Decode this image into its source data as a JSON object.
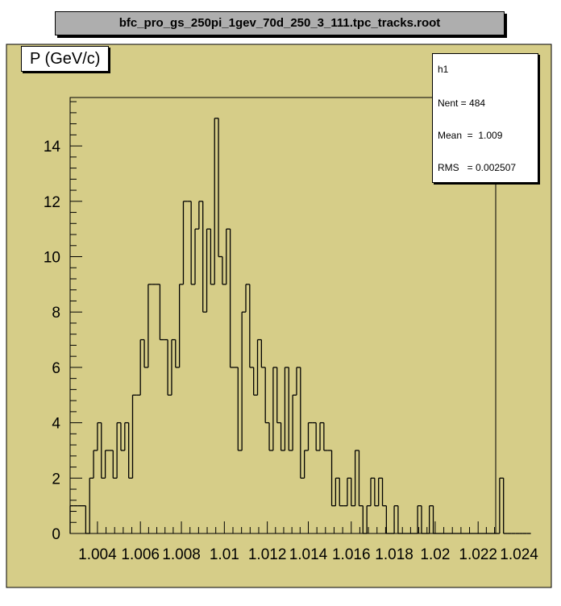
{
  "file_title": "bfc_pro_gs_250pi_1gev_70d_250_3_111.tpc_tracks.root",
  "colors": {
    "pad_fill": "#d6cd88",
    "frame_fill": "#d6cd88",
    "title_fill": "#aeaeae",
    "line": "#000000"
  },
  "stats": {
    "name": "h1",
    "entries": "Nent = 484",
    "mean": "Mean  =  1.009",
    "rms": "RMS   = 0.002507"
  },
  "chart_data": {
    "type": "histogram",
    "title": "P (GeV/c)",
    "xlabel": "",
    "ylabel": "",
    "xlim": [
      1.0024,
      1.0242
    ],
    "ylim": [
      0,
      15.75
    ],
    "grid": false,
    "legend": "top-right",
    "bin_width": 0.0002,
    "x_tick_labels": [
      "1.004",
      "1.006",
      "1.008",
      "1.01",
      "1.012",
      "1.014",
      "1.016",
      "1.018",
      "1.02",
      "1.022",
      "1.024"
    ],
    "x_tick_values": [
      1.0038,
      1.006,
      1.0081,
      1.0103,
      1.0125,
      1.0146,
      1.0168,
      1.019,
      1.0211,
      1.0233,
      1.0254
    ],
    "y_tick_labels": [
      "0",
      "2",
      "4",
      "6",
      "8",
      "10",
      "12",
      "14"
    ],
    "y_ticks": [
      0,
      2,
      4,
      6,
      8,
      10,
      12,
      14
    ],
    "counts": [
      1,
      1,
      1,
      1,
      0,
      2,
      3,
      4,
      2,
      3,
      3,
      2,
      4,
      3,
      4,
      2,
      5,
      5,
      7,
      6,
      9,
      9,
      9,
      7,
      7,
      5,
      7,
      6,
      9,
      12,
      12,
      9,
      11,
      12,
      8,
      11,
      9,
      15,
      10,
      9,
      11,
      6,
      6,
      3,
      8,
      9,
      6,
      5,
      7,
      6,
      4,
      3,
      6,
      4,
      3,
      6,
      3,
      5,
      6,
      2,
      3,
      4,
      4,
      3,
      4,
      3,
      3,
      1,
      2,
      1,
      1,
      2,
      1,
      3,
      1,
      0,
      1,
      2,
      1,
      2,
      1,
      0,
      0,
      1,
      0,
      0,
      0,
      0,
      0,
      1,
      0,
      0,
      1,
      0,
      0,
      0,
      0,
      0,
      0,
      0,
      0,
      0,
      0,
      0,
      0,
      0,
      0,
      0,
      0,
      0,
      2,
      0,
      0,
      0,
      0,
      0,
      0,
      0
    ]
  }
}
